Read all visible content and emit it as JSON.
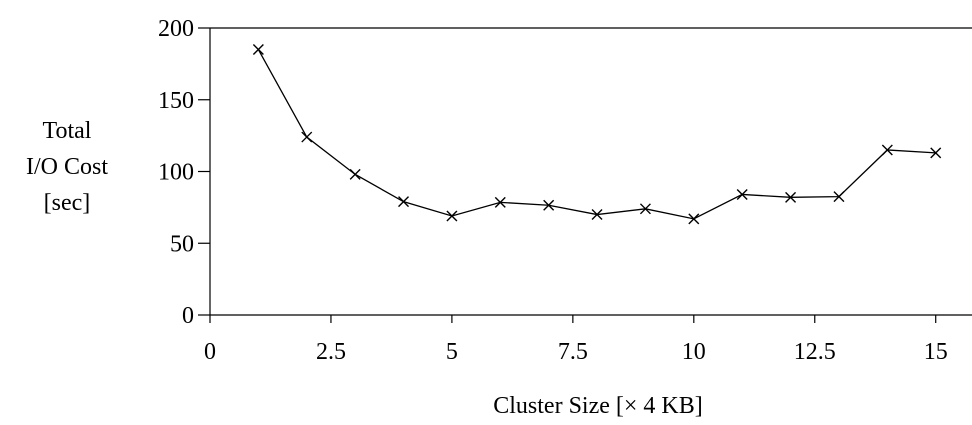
{
  "chart_data": {
    "type": "line",
    "title": "",
    "xlabel": "Cluster Size [× 4 KB]",
    "ylabel_lines": [
      "Total",
      "I/O Cost",
      "[sec]"
    ],
    "xlim": [
      0,
      15.75
    ],
    "ylim": [
      0,
      200
    ],
    "x_ticks": [
      0,
      2.5,
      5,
      7.5,
      10,
      12.5,
      15
    ],
    "x_tick_labels": [
      "0",
      "2.5",
      "5",
      "7.5",
      "10",
      "12.5",
      "15"
    ],
    "y_ticks": [
      0,
      50,
      100,
      150,
      200
    ],
    "y_tick_labels": [
      "0",
      "50",
      "100",
      "150",
      "200"
    ],
    "grid": false,
    "marker": "x",
    "line_color": "#000000",
    "series": [
      {
        "x": [
          1,
          2,
          3,
          4,
          5,
          6,
          7,
          8,
          9,
          10,
          11,
          12,
          13,
          14,
          15
        ],
        "values": [
          185,
          124,
          98,
          79,
          69,
          78.5,
          76.5,
          70,
          74,
          67,
          84,
          82,
          82.5,
          115,
          113
        ]
      }
    ]
  }
}
